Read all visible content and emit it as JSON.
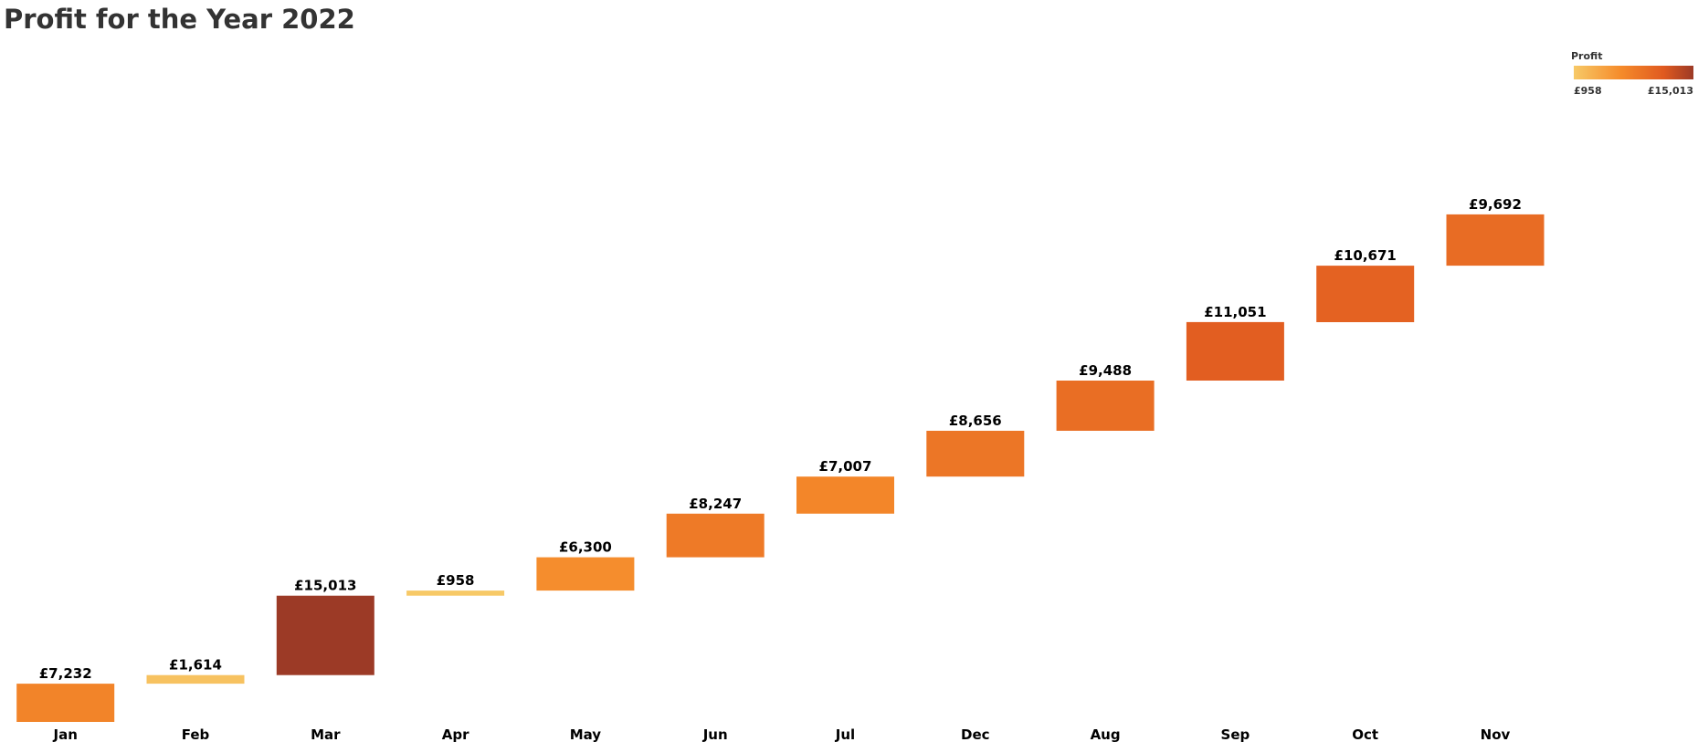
{
  "chart_data": {
    "type": "bar",
    "subtype": "waterfall",
    "title": "Profit for the Year 2022",
    "xlabel": "",
    "ylabel": "",
    "grid": false,
    "categories": [
      "Jan",
      "Feb",
      "Mar",
      "Apr",
      "May",
      "Jun",
      "Jul",
      "Dec",
      "Aug",
      "Sep",
      "Oct",
      "Nov"
    ],
    "values": [
      7232,
      1614,
      15013,
      958,
      6300,
      8247,
      7007,
      8656,
      9488,
      11051,
      10671,
      9692
    ],
    "value_labels": [
      "£7,232",
      "£1,614",
      "£15,013",
      "£958",
      "£6,300",
      "£8,247",
      "£7,007",
      "£8,656",
      "£9,488",
      "£11,051",
      "£10,671",
      "£9,692"
    ],
    "legend": {
      "title": "Profit",
      "placement": "top-right",
      "min_label": "£958",
      "max_label": "£15,013",
      "min": 958,
      "max": 15013,
      "colors": [
        "#f7c967",
        "#f58a2a",
        "#e05a20",
        "#9c3a26"
      ]
    }
  }
}
